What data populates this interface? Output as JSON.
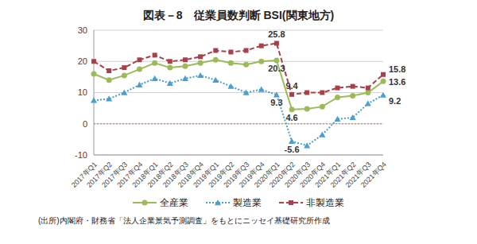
{
  "chart_data": {
    "type": "line",
    "title": "図表－8　従業員数判断 BSI(関東地方)",
    "source": "(出所)内閣府・財務省「法人企業景気予測調査」をもとにニッセイ基礎研究所作成",
    "categories": [
      "2017年Q1",
      "2017年Q2",
      "2017年Q3",
      "2017年Q4",
      "2018年Q1",
      "2018年Q2",
      "2018年Q3",
      "2018年Q4",
      "2019年Q1",
      "2019年Q2",
      "2019年Q3",
      "2019年Q4",
      "2020年Q1",
      "2020年Q2",
      "2020年Q3",
      "2020年Q4",
      "2021年Q1",
      "2021年Q2",
      "2021年Q3",
      "2021年Q4"
    ],
    "series": [
      {
        "name": "全産業",
        "color": "#9bbb59",
        "marker": "circle",
        "line_style": "solid",
        "values": [
          16,
          14,
          15.5,
          17.5,
          19.5,
          18,
          18.5,
          19.5,
          20.5,
          19.5,
          19,
          20,
          20.3,
          4.6,
          4.8,
          5.5,
          8.5,
          9,
          10,
          13.6
        ],
        "value_labels": [
          null,
          null,
          null,
          null,
          null,
          null,
          null,
          null,
          null,
          null,
          null,
          null,
          "20.3",
          "4.6",
          null,
          null,
          null,
          null,
          null,
          "13.6"
        ]
      },
      {
        "name": "製造業",
        "color": "#4a9fcf",
        "marker": "triangle",
        "line_style": "dotted",
        "values": [
          7.5,
          8,
          10,
          12.5,
          14.5,
          13,
          14.5,
          15.5,
          14,
          12,
          10,
          11,
          9.3,
          -5.6,
          -7,
          -3.5,
          1.5,
          2,
          6.5,
          9.2
        ],
        "value_labels": [
          null,
          null,
          null,
          null,
          null,
          null,
          null,
          null,
          null,
          null,
          null,
          null,
          "9.3",
          "-5.6",
          null,
          null,
          null,
          null,
          null,
          "9.2"
        ]
      },
      {
        "name": "非製造業",
        "color": "#a8404a",
        "marker": "square",
        "line_style": "dashed",
        "values": [
          20,
          17,
          18,
          20.5,
          22,
          20,
          20.5,
          21.5,
          23.5,
          23,
          23.5,
          25,
          25.8,
          9.4,
          10,
          10,
          11.5,
          12,
          11.5,
          15.8
        ],
        "value_labels": [
          null,
          null,
          null,
          null,
          null,
          null,
          null,
          null,
          null,
          null,
          null,
          null,
          "25.8",
          "9.4",
          null,
          null,
          null,
          null,
          null,
          "15.8"
        ]
      }
    ],
    "ylim": [
      -10,
      30
    ],
    "yticks": [
      -10,
      0,
      10,
      20,
      30
    ],
    "reference_lines": [
      0
    ],
    "grid": true,
    "legend": "bottom"
  }
}
